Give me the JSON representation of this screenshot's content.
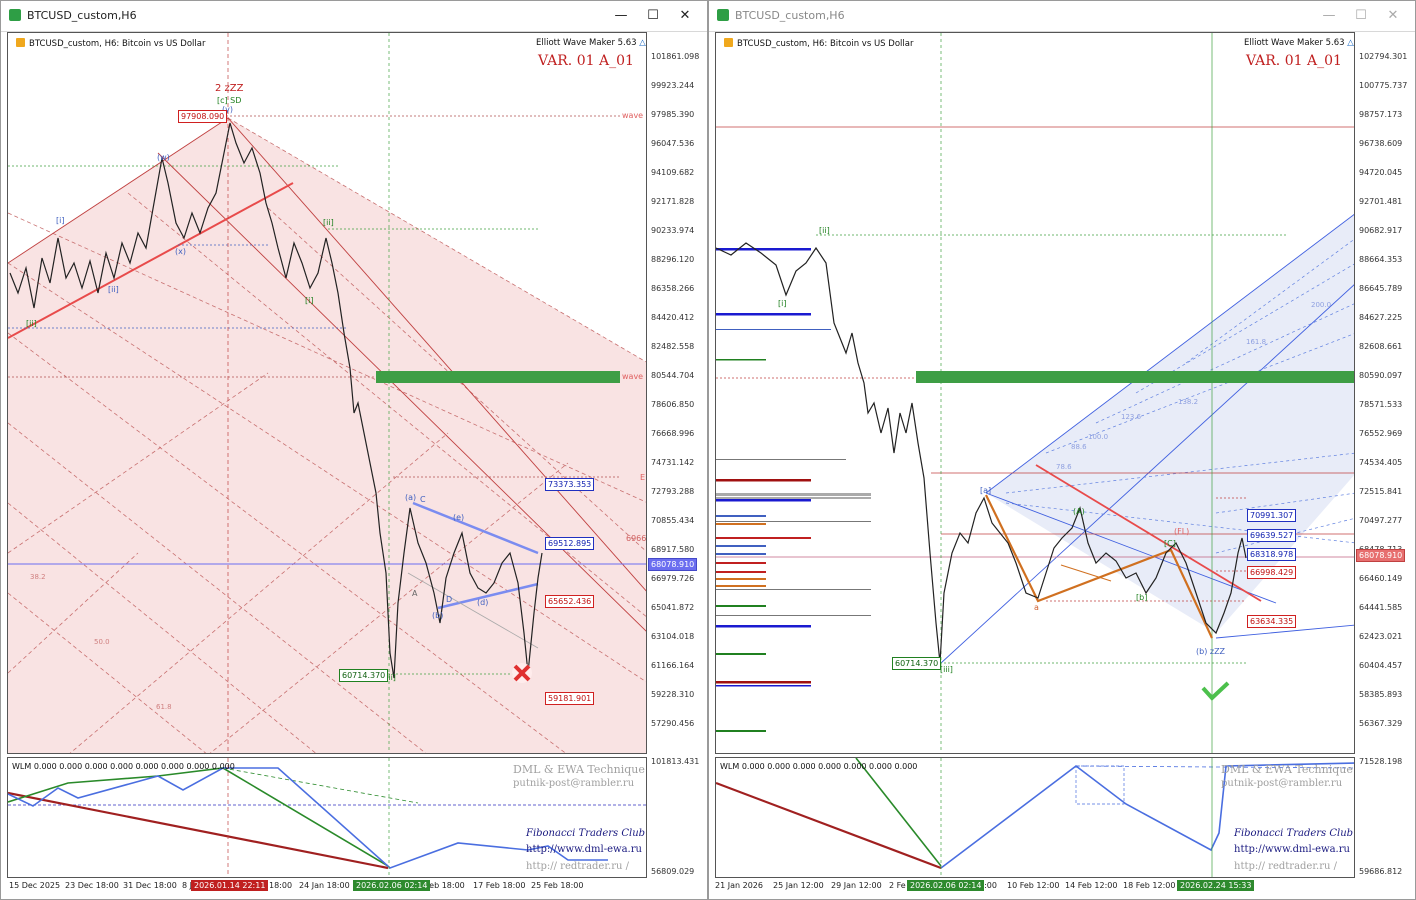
{
  "left_window": {
    "title": "BTCUSD_custom,H6",
    "symbol_header": "BTCUSD_custom, H6:  Bitcoin vs US Dollar",
    "indicator_name": "Elliott Wave Maker 5.63",
    "variant": "VAR. 01 A_01",
    "price_axis": [
      "101861.098",
      "99923.244",
      "97985.390",
      "96047.536",
      "94109.682",
      "92171.828",
      "90233.974",
      "88296.120",
      "86358.266",
      "84420.412",
      "82482.558",
      "80544.704",
      "78606.850",
      "76668.996",
      "74731.142",
      "72793.288",
      "70855.434",
      "68917.580",
      "66979.726",
      "65041.872",
      "63104.018",
      "61166.164",
      "59228.310",
      "57290.456"
    ],
    "current_price": "68078.910",
    "labels": {
      "top_high": "97908.090",
      "level_a": "73373.353",
      "level_b": "69512.895",
      "level_c": "65652.436",
      "level_d": "59181.901",
      "low": "60714.370",
      "cut_right": "6966"
    },
    "wave_marks": {
      "zz": "2 zZZ",
      "cd": "[c] SD",
      "y": "(y)",
      "w": "(w)",
      "x": "(x)",
      "i": "[i]",
      "ii": "[ii]",
      "iii": "[iii]",
      "a": "(a)",
      "b": "(b)",
      "c": "(c)",
      "d": "(d)",
      "e": "(e)",
      "wave1": "wave",
      "wave2": "wave",
      "small_e": "E",
      "small_a": "A",
      "small_c": "C",
      "small_d": "D",
      "f382": "38.2",
      "f500": "50.0",
      "f618": "61.8"
    },
    "sub_axis": [
      "101813.431",
      "56809.029"
    ],
    "wlm": "WLM 0.000 0.000 0.000 0.000 0.000 0.000 0.000 0.000",
    "credits": {
      "dml": "DML & EWA Technique",
      "email": "putnik-post@rambler.ru",
      "club": "Fibonacci     Traders     Club",
      "url1": "http://www.dml-ewa.ru",
      "url2": "http:// redtrader.ru /"
    },
    "time_axis": [
      "15 Dec 2025",
      "23 Dec 18:00",
      "31 Dec 18:00",
      "8 J",
      "18:00",
      "24 Jan 18:00",
      "Feb 18:00",
      "17 Feb 18:00",
      "25 Feb 18:00"
    ],
    "time_badges": [
      "2026.01.14 22:11",
      "2026.02.06 02:14"
    ],
    "colors": {
      "red_zone": "#f9e3e3",
      "green_bar": "#3e9e45",
      "price_line": "#6b6ef0",
      "red_label": "#d02020"
    }
  },
  "right_window": {
    "title": "BTCUSD_custom,H6",
    "symbol_header": "BTCUSD_custom, H6:  Bitcoin vs US Dollar",
    "indicator_name": "Elliott Wave Maker 5.63",
    "variant": "VAR. 01 A_01",
    "price_axis": [
      "102794.301",
      "100775.737",
      "98757.173",
      "96738.609",
      "94720.045",
      "92701.481",
      "90682.917",
      "88664.353",
      "86645.789",
      "84627.225",
      "82608.661",
      "80590.097",
      "78571.533",
      "76552.969",
      "74534.405",
      "72515.841",
      "70497.277",
      "68478.713",
      "66460.149",
      "64441.585",
      "62423.021",
      "60404.457",
      "58385.893",
      "56367.329"
    ],
    "current_price": "68078.910",
    "labels": {
      "l1": "70991.307",
      "l2": "69639.527",
      "l3": "68318.978",
      "l4": "66998.429",
      "l5": "63634.335",
      "low": "60714.370"
    },
    "wave_marks": {
      "ii": "[ii]",
      "i": "[i]",
      "iii": "[iii]",
      "a": "[a]",
      "a2": "(A)",
      "b": "[b]",
      "c": "[C]",
      "fl": "(FL)",
      "bzz": "(b) zZZ",
      "small_a": "a",
      "f1000": "100.0",
      "f1618": "161.8",
      "f2000": "200.0",
      "f1382": "138.2",
      "f1236": "123.6",
      "f886": "88.6",
      "f786": "78.6"
    },
    "sub_axis": [
      "71528.198",
      "59686.812"
    ],
    "wlm": "WLM 0.000 0.000 0.000 0.000 0.000 0.000 0.000",
    "credits": {
      "dml": "DML & EWA Technique",
      "email": "putnik-post@rambler.ru",
      "club": "Fibonacci     Traders     Club",
      "url1": "http://www.dml-ewa.ru",
      "url2": "http:// redtrader.ru /"
    },
    "time_axis": [
      "21 Jan 2026",
      "25 Jan 12:00",
      "29 Jan 12:00",
      "2 Fe",
      "2:00",
      "10 Feb 12:00",
      "14 Feb 12:00",
      "18 Feb 12:00"
    ],
    "time_badges": [
      "2026.02.06 02:14",
      "2026.02.24 15:33"
    ]
  }
}
